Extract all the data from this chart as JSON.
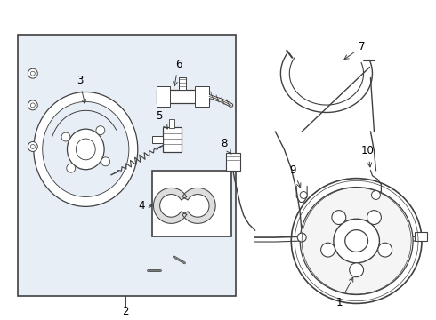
{
  "bg_color": "#ffffff",
  "box_bg": "#e8eef5",
  "line_color": "#404040",
  "label_color": "#000000",
  "fig_width": 4.9,
  "fig_height": 3.6,
  "dpi": 100
}
